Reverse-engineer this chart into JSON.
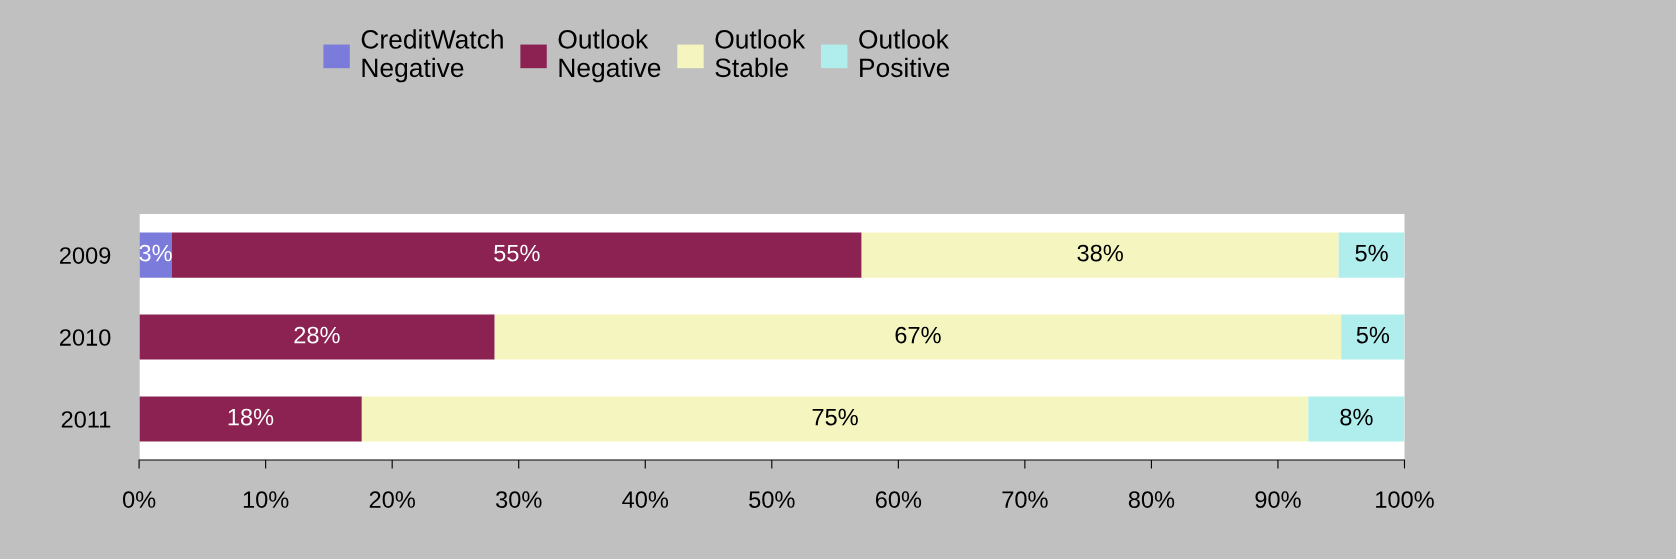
{
  "chart_data": {
    "type": "bar",
    "orientation": "horizontal",
    "stacked": true,
    "categories": [
      "2009",
      "2010",
      "2011"
    ],
    "series": [
      {
        "name": "CreditWatch\nNegative",
        "color": "#7b7bdb",
        "values": [
          2.6,
          null,
          null
        ],
        "value_labels": [
          "3%",
          null,
          null
        ]
      },
      {
        "name": "Outlook\nNegative",
        "color": "#8b2252",
        "values": [
          54.5,
          28.1,
          17.6
        ],
        "value_labels": [
          "55%",
          "28%",
          "18%"
        ]
      },
      {
        "name": "Outlook\nStable",
        "color": "#f5f5c0",
        "values": [
          37.7,
          66.9,
          74.8
        ],
        "value_labels": [
          "38%",
          "67%",
          "75%"
        ]
      },
      {
        "name": "Outlook\nPositive",
        "color": "#b0eeee",
        "values": [
          5.2,
          5.0,
          7.6
        ],
        "value_labels": [
          "5%",
          "5%",
          "8%"
        ]
      }
    ],
    "xlim": [
      0,
      100
    ],
    "xticks": [
      {
        "value": 0,
        "label": "0%"
      },
      {
        "value": 10,
        "label": "10%"
      },
      {
        "value": 20,
        "label": "20%"
      },
      {
        "value": 30,
        "label": "30%"
      },
      {
        "value": 40,
        "label": "40%"
      },
      {
        "value": 50,
        "label": "50%"
      },
      {
        "value": 60,
        "label": "60%"
      },
      {
        "value": 70,
        "label": "70%"
      },
      {
        "value": 80,
        "label": "80%"
      },
      {
        "value": 90,
        "label": "90%"
      },
      {
        "value": 100,
        "label": "100%"
      }
    ],
    "legend": "top",
    "grid": false
  }
}
